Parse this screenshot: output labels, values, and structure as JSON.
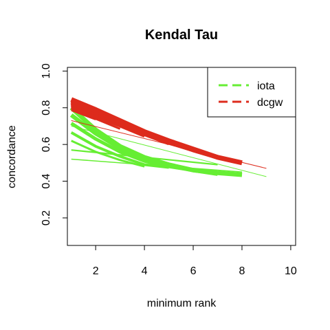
{
  "chart_data": {
    "type": "line",
    "title": "Kendal Tau",
    "xlabel": "minimum rank",
    "ylabel": "concordance",
    "xlim": [
      0.84,
      10.2
    ],
    "ylim": [
      0.05,
      1.02
    ],
    "xticks": [
      2,
      4,
      6,
      8,
      10
    ],
    "yticks": [
      0.2,
      0.4,
      0.6,
      0.8,
      1.0
    ],
    "xtick_labels": [
      "2",
      "4",
      "6",
      "8",
      "10"
    ],
    "ytick_labels": [
      "0.2",
      "0.4",
      "0.6",
      "0.8",
      "1.0"
    ],
    "grid": false,
    "legend_position": "top-right",
    "legend": [
      {
        "label": "iota",
        "color": "#66ee33"
      },
      {
        "label": "dcgw",
        "color": "#dd2b1c"
      }
    ],
    "series": [
      {
        "group": "iota",
        "color": "#66ee33",
        "width": 6.5,
        "x": [
          1,
          2,
          3,
          4,
          5,
          6,
          7,
          8
        ],
        "y": [
          0.8,
          0.68,
          0.59,
          0.53,
          0.49,
          0.46,
          0.445,
          0.435
        ]
      },
      {
        "group": "iota",
        "color": "#66ee33",
        "width": 6.0,
        "x": [
          1,
          2,
          3,
          4,
          5,
          6,
          7
        ],
        "y": [
          0.76,
          0.66,
          0.58,
          0.52,
          0.485,
          0.46,
          0.44
        ]
      },
      {
        "group": "iota",
        "color": "#66ee33",
        "width": 5.0,
        "x": [
          1,
          2,
          3,
          4,
          5,
          6
        ],
        "y": [
          0.715,
          0.63,
          0.56,
          0.51,
          0.48,
          0.46
        ]
      },
      {
        "group": "iota",
        "color": "#66ee33",
        "width": 4.0,
        "x": [
          1,
          2,
          3,
          4,
          5
        ],
        "y": [
          0.665,
          0.59,
          0.535,
          0.49,
          0.475
        ]
      },
      {
        "group": "iota",
        "color": "#66ee33",
        "width": 3.0,
        "x": [
          1,
          2,
          3,
          4
        ],
        "y": [
          0.62,
          0.56,
          0.515,
          0.48
        ]
      },
      {
        "group": "iota",
        "color": "#66ee33",
        "width": 2.2,
        "x": [
          1,
          4,
          7
        ],
        "y": [
          0.57,
          0.53,
          0.49
        ]
      },
      {
        "group": "iota",
        "color": "#66ee33",
        "width": 1.6,
        "x": [
          1,
          4,
          8
        ],
        "y": [
          0.52,
          0.49,
          0.45
        ]
      },
      {
        "group": "iota",
        "color": "#66ee33",
        "width": 1.0,
        "x": [
          1,
          9
        ],
        "y": [
          0.7,
          0.425
        ]
      },
      {
        "group": "dcgw",
        "color": "#dd2b1c",
        "width": 7.0,
        "x": [
          1,
          2,
          3,
          4,
          5,
          6,
          7,
          8
        ],
        "y": [
          0.845,
          0.79,
          0.73,
          0.67,
          0.62,
          0.575,
          0.53,
          0.5
        ]
      },
      {
        "group": "dcgw",
        "color": "#dd2b1c",
        "width": 6.5,
        "x": [
          1,
          2,
          3,
          4,
          5,
          6,
          7
        ],
        "y": [
          0.835,
          0.78,
          0.725,
          0.665,
          0.615,
          0.57,
          0.53
        ]
      },
      {
        "group": "dcgw",
        "color": "#dd2b1c",
        "width": 6.0,
        "x": [
          1,
          2,
          3,
          4,
          5,
          6
        ],
        "y": [
          0.825,
          0.77,
          0.715,
          0.66,
          0.61,
          0.57
        ]
      },
      {
        "group": "dcgw",
        "color": "#dd2b1c",
        "width": 5.0,
        "x": [
          1,
          2,
          3,
          4,
          5
        ],
        "y": [
          0.815,
          0.76,
          0.705,
          0.655,
          0.605
        ]
      },
      {
        "group": "dcgw",
        "color": "#dd2b1c",
        "width": 4.0,
        "x": [
          1,
          2,
          3,
          4
        ],
        "y": [
          0.805,
          0.75,
          0.7,
          0.645
        ]
      },
      {
        "group": "dcgw",
        "color": "#dd2b1c",
        "width": 3.0,
        "x": [
          1,
          2,
          3
        ],
        "y": [
          0.795,
          0.74,
          0.685
        ]
      },
      {
        "group": "dcgw",
        "color": "#dd2b1c",
        "width": 2.0,
        "x": [
          1,
          2
        ],
        "y": [
          0.785,
          0.735
        ]
      },
      {
        "group": "dcgw",
        "color": "#dd2b1c",
        "width": 1.0,
        "x": [
          1,
          9
        ],
        "y": [
          0.73,
          0.47
        ]
      }
    ]
  }
}
